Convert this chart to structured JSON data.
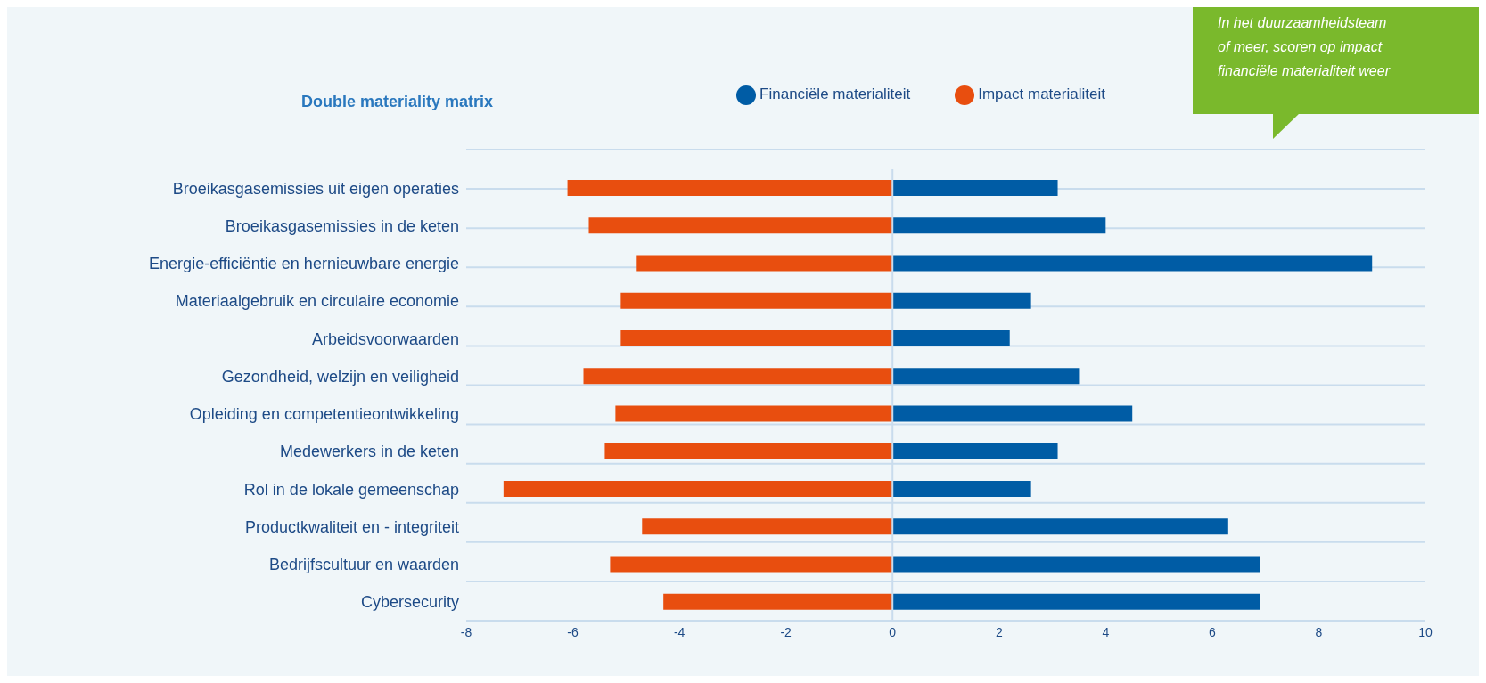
{
  "chart_data": {
    "type": "bar",
    "orientation": "horizontal",
    "stacked": true,
    "title": "Double materiality matrix",
    "categories": [
      "Broeikasgasemissies uit eigen operaties",
      "Broeikasgasemissies in de keten",
      "Energie-efficiëntie en hernieuwbare energie",
      "Materiaalgebruik en circulaire economie",
      "Arbeidsvoorwaarden",
      "Gezondheid, welzijn en veiligheid",
      "Opleiding en competentieontwikkeling",
      "Medewerkers in de keten",
      "Rol in de lokale gemeenschap",
      "Productkwaliteit en - integriteit",
      "Bedrijfscultuur en waarden",
      "Cybersecurity"
    ],
    "series": [
      {
        "name": "Impact materialiteit",
        "color": "#e84e0f",
        "values": [
          -6.1,
          -5.7,
          -4.8,
          -5.1,
          -5.1,
          -5.8,
          -5.2,
          -5.4,
          -7.3,
          -4.7,
          -5.3,
          -4.3
        ]
      },
      {
        "name": "Financiële materialiteit",
        "color": "#005ca5",
        "values": [
          3.1,
          4.0,
          9.0,
          2.6,
          2.2,
          3.5,
          4.5,
          3.1,
          2.6,
          6.3,
          6.9,
          6.9
        ]
      }
    ],
    "xlim": [
      -8,
      10
    ],
    "xticks": [
      -8,
      -6,
      -4,
      -2,
      0,
      2,
      4,
      6,
      8,
      10
    ],
    "grid": "y",
    "legend": "top",
    "ref_lines": [
      {
        "axis": "x",
        "value": 0,
        "color": "#c9dced"
      }
    ],
    "annotations": [
      "In het duurzaamheidsteam",
      "of meer, scoren op impact",
      "financiële materialiteit weer"
    ]
  }
}
